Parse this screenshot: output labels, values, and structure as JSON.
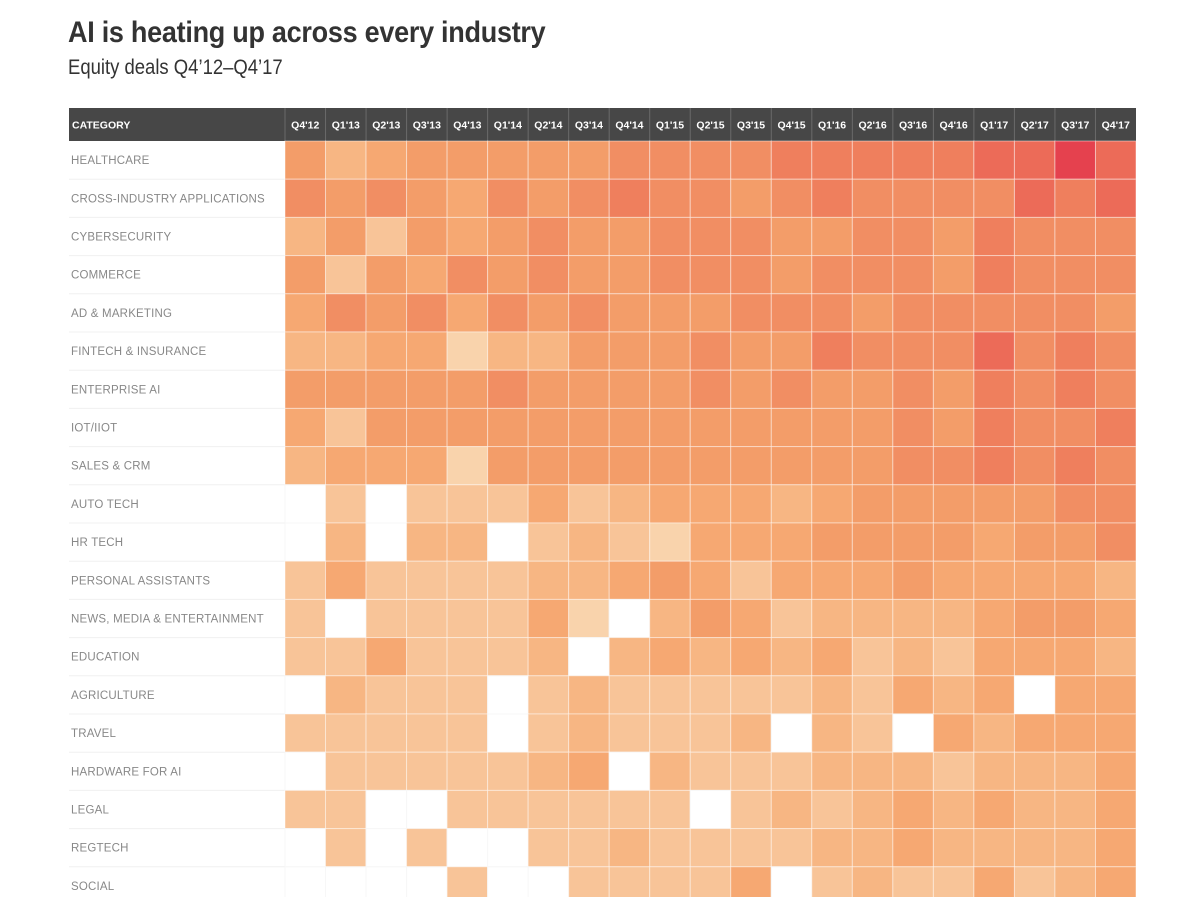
{
  "header": {
    "title": "AI is heating up across every industry",
    "subtitle": "Equity deals Q4’12–Q4’17"
  },
  "chart_data": {
    "type": "heatmap",
    "title": "AI is heating up across every industry",
    "subtitle": "Equity deals Q4’12–Q4’17",
    "row_header": "CATEGORY",
    "value_meaning": "relative deal-activity intensity (0 = no deals / blank cell, 9 = highest), estimated from cell color",
    "scale": [
      0,
      9
    ],
    "color_ramp": [
      "#FFFFFF",
      "#F9D3AC",
      "#F8C498",
      "#F7B683",
      "#F6A872",
      "#F39D69",
      "#F18E63",
      "#EF7F5D",
      "#EC6B58",
      "#E5414E"
    ],
    "header_bg": "#474747",
    "columns": [
      "Q4'12",
      "Q1'13",
      "Q2'13",
      "Q3'13",
      "Q4'13",
      "Q1'14",
      "Q2'14",
      "Q3'14",
      "Q4'14",
      "Q1'15",
      "Q2'15",
      "Q3'15",
      "Q4'15",
      "Q1'16",
      "Q2'16",
      "Q3'16",
      "Q4'16",
      "Q1'17",
      "Q2'17",
      "Q3'17",
      "Q4'17"
    ],
    "rows": [
      {
        "label": "HEALTHCARE",
        "values": [
          5,
          3,
          4,
          5,
          5,
          5,
          5,
          5,
          6,
          6,
          6,
          6,
          7,
          7,
          7,
          7,
          7,
          8,
          8,
          9,
          8
        ]
      },
      {
        "label": "CROSS-INDUSTRY APPLICATIONS",
        "values": [
          6,
          5,
          6,
          5,
          4,
          6,
          5,
          6,
          7,
          6,
          6,
          5,
          6,
          7,
          6,
          6,
          6,
          6,
          8,
          7,
          8
        ]
      },
      {
        "label": "CYBERSECURITY",
        "values": [
          3,
          5,
          2,
          5,
          4,
          5,
          6,
          5,
          5,
          6,
          6,
          6,
          5,
          5,
          6,
          6,
          5,
          7,
          6,
          6,
          6
        ]
      },
      {
        "label": "COMMERCE",
        "values": [
          5,
          2,
          5,
          4,
          6,
          5,
          6,
          5,
          5,
          6,
          6,
          6,
          5,
          6,
          6,
          6,
          5,
          7,
          6,
          6,
          6
        ]
      },
      {
        "label": "AD & MARKETING",
        "values": [
          4,
          6,
          5,
          6,
          4,
          6,
          5,
          6,
          5,
          5,
          5,
          6,
          6,
          6,
          5,
          6,
          6,
          6,
          6,
          6,
          5
        ]
      },
      {
        "label": "FINTECH & INSURANCE",
        "values": [
          3,
          3,
          4,
          4,
          1,
          3,
          3,
          5,
          5,
          5,
          6,
          5,
          5,
          7,
          6,
          6,
          6,
          8,
          6,
          7,
          6
        ]
      },
      {
        "label": "ENTERPRISE AI",
        "values": [
          5,
          5,
          5,
          5,
          5,
          6,
          5,
          5,
          5,
          5,
          6,
          5,
          6,
          5,
          5,
          6,
          5,
          7,
          6,
          7,
          6
        ]
      },
      {
        "label": "IOT/IIOT",
        "values": [
          4,
          2,
          5,
          5,
          5,
          5,
          5,
          5,
          5,
          5,
          5,
          5,
          5,
          5,
          5,
          6,
          5,
          7,
          6,
          6,
          7
        ]
      },
      {
        "label": "SALES & CRM",
        "values": [
          3,
          4,
          4,
          4,
          1,
          5,
          5,
          5,
          5,
          5,
          5,
          5,
          5,
          5,
          5,
          6,
          6,
          7,
          6,
          7,
          6
        ]
      },
      {
        "label": "AUTO TECH",
        "values": [
          0,
          2,
          0,
          2,
          2,
          2,
          4,
          2,
          3,
          4,
          4,
          4,
          3,
          4,
          5,
          5,
          5,
          5,
          5,
          6,
          6
        ]
      },
      {
        "label": "HR TECH",
        "values": [
          0,
          3,
          0,
          3,
          3,
          0,
          2,
          3,
          2,
          1,
          4,
          4,
          4,
          5,
          5,
          5,
          5,
          4,
          5,
          5,
          6
        ]
      },
      {
        "label": "PERSONAL ASSISTANTS",
        "values": [
          2,
          4,
          2,
          2,
          2,
          2,
          3,
          3,
          4,
          5,
          4,
          2,
          4,
          4,
          4,
          5,
          4,
          4,
          4,
          4,
          3
        ]
      },
      {
        "label": "NEWS, MEDIA & ENTERTAINMENT",
        "values": [
          2,
          0,
          2,
          2,
          2,
          2,
          4,
          1,
          0,
          3,
          5,
          4,
          2,
          3,
          3,
          3,
          3,
          4,
          5,
          5,
          4
        ]
      },
      {
        "label": "EDUCATION",
        "values": [
          2,
          2,
          4,
          2,
          2,
          2,
          3,
          0,
          3,
          4,
          3,
          4,
          3,
          4,
          2,
          3,
          2,
          4,
          4,
          4,
          3
        ]
      },
      {
        "label": "AGRICULTURE",
        "values": [
          0,
          3,
          2,
          2,
          2,
          0,
          2,
          3,
          2,
          2,
          2,
          2,
          2,
          3,
          2,
          4,
          3,
          4,
          0,
          4,
          4
        ]
      },
      {
        "label": "TRAVEL",
        "values": [
          2,
          2,
          2,
          2,
          2,
          0,
          2,
          3,
          2,
          2,
          2,
          3,
          0,
          3,
          2,
          0,
          4,
          3,
          4,
          4,
          4
        ]
      },
      {
        "label": "HARDWARE FOR AI",
        "values": [
          0,
          2,
          2,
          2,
          2,
          2,
          3,
          4,
          0,
          3,
          2,
          2,
          2,
          3,
          3,
          3,
          2,
          3,
          3,
          3,
          4
        ]
      },
      {
        "label": "LEGAL",
        "values": [
          2,
          2,
          0,
          0,
          2,
          2,
          2,
          2,
          2,
          2,
          0,
          2,
          3,
          2,
          3,
          4,
          3,
          4,
          3,
          3,
          4
        ]
      },
      {
        "label": "REGTECH",
        "values": [
          0,
          2,
          0,
          2,
          0,
          0,
          2,
          2,
          3,
          2,
          2,
          2,
          2,
          3,
          3,
          4,
          3,
          3,
          3,
          3,
          4
        ]
      },
      {
        "label": "SOCIAL",
        "values": [
          0,
          0,
          0,
          0,
          2,
          0,
          0,
          2,
          2,
          2,
          2,
          4,
          0,
          2,
          3,
          2,
          2,
          4,
          2,
          3,
          4
        ]
      }
    ],
    "legend": "none",
    "grid": true
  }
}
